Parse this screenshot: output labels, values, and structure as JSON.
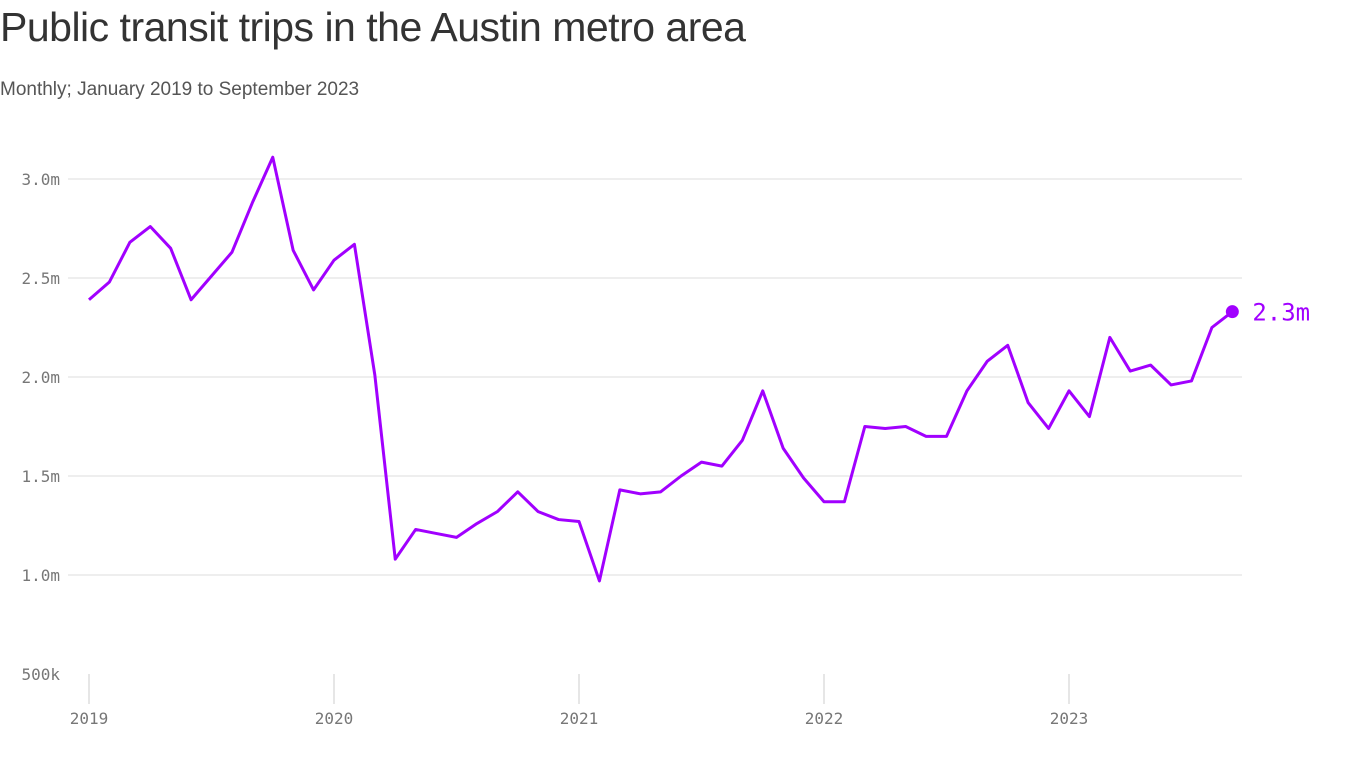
{
  "chart_data": {
    "type": "line",
    "title": "Public transit trips in the Austin metro area",
    "subtitle": "Monthly; January 2019 to September 2023",
    "xlabel": "",
    "ylabel": "",
    "x_start": "2019-01",
    "x_end": "2023-09",
    "x_ticks": [
      "2019",
      "2020",
      "2021",
      "2022",
      "2023"
    ],
    "y_ticks": [
      {
        "value": 0.5,
        "label": "500k"
      },
      {
        "value": 1.0,
        "label": "1.0m"
      },
      {
        "value": 1.5,
        "label": "1.5m"
      },
      {
        "value": 2.0,
        "label": "2.0m"
      },
      {
        "value": 2.5,
        "label": "2.5m"
      },
      {
        "value": 3.0,
        "label": "3.0m"
      }
    ],
    "ylim": [
      0.5,
      3.0
    ],
    "y_unit": "millions of trips",
    "grid": true,
    "color": "#a100ff",
    "end_label": "2.3m",
    "series": [
      {
        "values": [
          2.39,
          2.48,
          2.68,
          2.76,
          2.65,
          2.39,
          2.51,
          2.63,
          2.88,
          3.11,
          2.64,
          2.44,
          2.59,
          2.67,
          2.01,
          1.08,
          1.23,
          1.21,
          1.19,
          1.26,
          1.32,
          1.42,
          1.32,
          1.28,
          1.27,
          0.97,
          1.43,
          1.41,
          1.42,
          1.5,
          1.57,
          1.55,
          1.68,
          1.93,
          1.64,
          1.49,
          1.37,
          1.37,
          1.75,
          1.74,
          1.75,
          1.7,
          1.7,
          1.93,
          2.08,
          2.16,
          1.87,
          1.74,
          1.93,
          1.8,
          2.2,
          2.03,
          2.06,
          1.96,
          1.98,
          2.25,
          2.33
        ]
      }
    ]
  }
}
